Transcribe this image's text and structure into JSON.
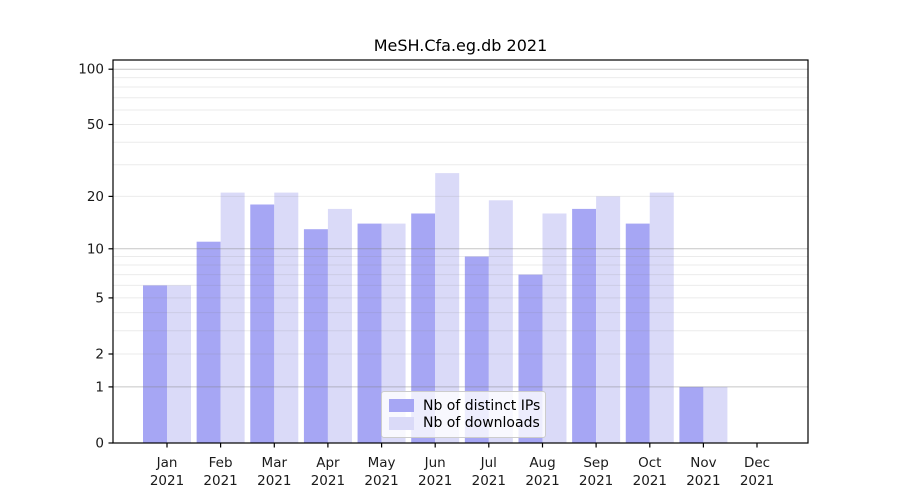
{
  "chart_data": {
    "type": "bar",
    "title": "MeSH.Cfa.eg.db 2021",
    "categories": [
      "Jan",
      "Feb",
      "Mar",
      "Apr",
      "May",
      "Jun",
      "Jul",
      "Aug",
      "Sep",
      "Oct",
      "Nov",
      "Dec"
    ],
    "category_year": "2021",
    "series": [
      {
        "name": "Nb of distinct IPs",
        "color": "#a6a6f4",
        "values": [
          6,
          11,
          18,
          13,
          14,
          16,
          9,
          7,
          17,
          14,
          1,
          0
        ]
      },
      {
        "name": "Nb of downloads",
        "color": "#dadaf8",
        "values": [
          6,
          21,
          21,
          17,
          14,
          27,
          19,
          16,
          20,
          21,
          1,
          0
        ]
      }
    ],
    "xlabel": "",
    "ylabel": "",
    "yscale": "log1p",
    "ylim": [
      0,
      113
    ],
    "yticks": [
      100,
      50,
      20,
      10,
      5,
      2,
      1,
      0
    ],
    "minor_gridlines": [
      2,
      3,
      4,
      5,
      6,
      7,
      8,
      9,
      20,
      30,
      40,
      50,
      60,
      70,
      80,
      90
    ],
    "major_gridlines": [
      1,
      10,
      100
    ],
    "grid": true,
    "legend_position": "lower-center-inside",
    "colors": {
      "background": "#ffffff",
      "axis": "#000000",
      "tick_text": "#1a1a1a",
      "minor_grid": "#ebebeb",
      "major_grid": "#c2c2c2"
    }
  }
}
